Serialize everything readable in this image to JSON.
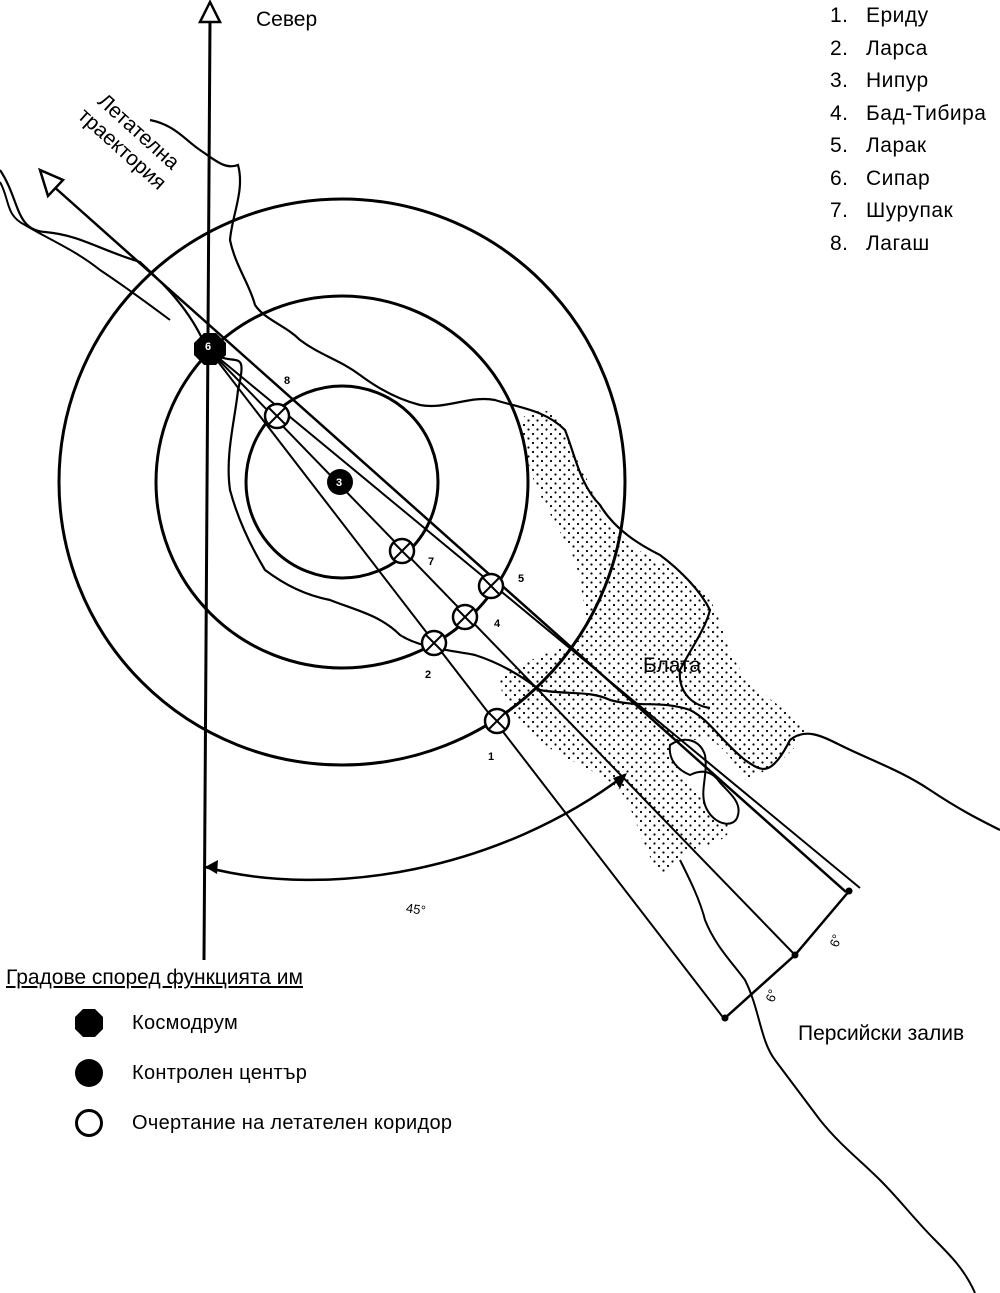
{
  "north_label": "Север",
  "trajectory_label_line1": "Летателна",
  "trajectory_label_line2": "траектория",
  "marsh_label": "Блата",
  "gulf_label": "Персийски залив",
  "angle_label": "45°",
  "corridor_angle_1": "6°",
  "corridor_angle_2": "6°",
  "city_list": [
    {
      "num": "1.",
      "name": "Ериду"
    },
    {
      "num": "2.",
      "name": "Ларса"
    },
    {
      "num": "3.",
      "name": "Нипур"
    },
    {
      "num": "4.",
      "name": "Бад-Тибира"
    },
    {
      "num": "5.",
      "name": "Ларак"
    },
    {
      "num": "6.",
      "name": "Сипар"
    },
    {
      "num": "7.",
      "name": "Шурупак"
    },
    {
      "num": "8.",
      "name": "Лагаш"
    }
  ],
  "point_labels": {
    "p1": "1",
    "p2": "2",
    "p3": "3",
    "p4": "4",
    "p5": "5",
    "p6": "6",
    "p7": "7",
    "p8": "8"
  },
  "function_legend": {
    "title": "Градове според функцията им",
    "items": [
      {
        "symbol": "filled-octagon",
        "label": "Космодрум"
      },
      {
        "symbol": "filled-circle",
        "label": "Контролен център"
      },
      {
        "symbol": "open-circle",
        "label": "Очертание на летателен коридор"
      }
    ]
  }
}
